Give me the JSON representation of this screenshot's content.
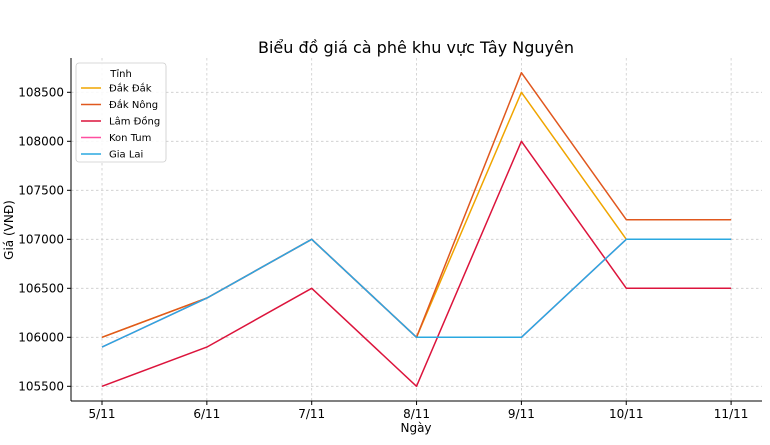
{
  "chart_data": {
    "type": "line",
    "title": "Biểu đồ giá cà phê khu vực Tây Nguyên",
    "xlabel": "Ngày",
    "ylabel": "Giá (VNĐ)",
    "categories": [
      "5/11",
      "6/11",
      "7/11",
      "8/11",
      "9/11",
      "10/11",
      "11/11"
    ],
    "ylim": [
      105350,
      108850
    ],
    "yticks": [
      105500,
      106000,
      106500,
      107000,
      107500,
      108000,
      108500
    ],
    "grid": true,
    "legend": {
      "title": "Tỉnh",
      "position": "top-left"
    },
    "series": [
      {
        "name": "Đắk Đắk",
        "color": "#f0a500",
        "values": [
          106000,
          106400,
          107000,
          106000,
          108500,
          107000,
          107000
        ]
      },
      {
        "name": "Đắk Nông",
        "color": "#e0581e",
        "values": [
          106000,
          106400,
          107000,
          106000,
          108700,
          107200,
          107200
        ]
      },
      {
        "name": "Lâm Đồng",
        "color": "#dc143c",
        "values": [
          105500,
          105900,
          106500,
          105500,
          108000,
          106500,
          106500
        ]
      },
      {
        "name": "Kon Tum",
        "color": "#ff4fa0",
        "values": [
          105900,
          106400,
          107000,
          106000,
          106000,
          107000,
          107000
        ]
      },
      {
        "name": "Gia Lai",
        "color": "#2aa8e0",
        "values": [
          105900,
          106400,
          107000,
          106000,
          106000,
          107000,
          107000
        ]
      }
    ]
  }
}
